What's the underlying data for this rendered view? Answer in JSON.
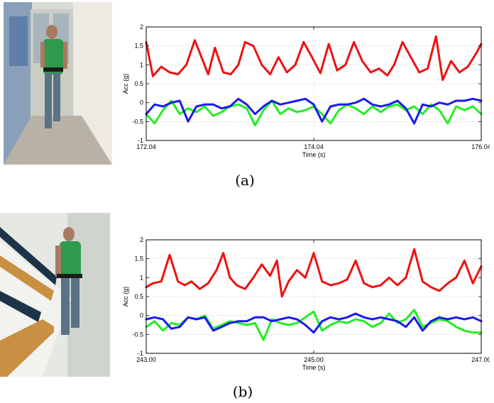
{
  "captions": {
    "a": "(a)",
    "b": "(b)"
  },
  "photos": {
    "a": "person-walking-corridor",
    "b": "person-climbing-stairs"
  },
  "chart_data": [
    {
      "type": "line",
      "xlabel": "Time (s)",
      "ylabel": "Acc (g)",
      "xlim": [
        172.04,
        176.04
      ],
      "ylim": [
        -1,
        2
      ],
      "xticks": [
        172.04,
        174.04,
        176.04
      ],
      "xtick_labels": [
        "172.04",
        "174.04",
        "176.04"
      ],
      "yticks": [
        -1,
        -0.5,
        0,
        0.5,
        1,
        1.5,
        2
      ],
      "ytick_labels": [
        "-1",
        "-0.5",
        "0",
        "0.5",
        "1",
        "1.5",
        "2"
      ],
      "grid": true,
      "series": [
        {
          "color": "#ee1111",
          "x": [
            172.04,
            172.12,
            172.22,
            172.32,
            172.42,
            172.52,
            172.62,
            172.7,
            172.78,
            172.86,
            172.96,
            173.05,
            173.14,
            173.22,
            173.32,
            173.42,
            173.52,
            173.62,
            173.72,
            173.82,
            173.92,
            174.02,
            174.12,
            174.22,
            174.32,
            174.42,
            174.52,
            174.62,
            174.72,
            174.82,
            174.92,
            175.0,
            175.1,
            175.2,
            175.3,
            175.4,
            175.5,
            175.58,
            175.68,
            175.78,
            175.88,
            175.98,
            176.04
          ],
          "values": [
            1.6,
            0.7,
            0.95,
            0.8,
            0.75,
            1.0,
            1.65,
            1.2,
            0.75,
            1.45,
            0.8,
            0.75,
            1.0,
            1.6,
            1.5,
            1.0,
            0.75,
            1.2,
            0.8,
            1.0,
            1.6,
            1.2,
            0.78,
            1.55,
            0.85,
            1.0,
            1.6,
            1.1,
            0.8,
            0.9,
            0.72,
            1.0,
            1.6,
            1.2,
            0.8,
            0.9,
            1.75,
            0.6,
            1.1,
            0.8,
            0.95,
            1.3,
            1.55
          ]
        },
        {
          "color": "#22ee22",
          "x": [
            172.04,
            172.14,
            172.24,
            172.34,
            172.44,
            172.54,
            172.64,
            172.74,
            172.84,
            172.94,
            173.04,
            173.14,
            173.24,
            173.34,
            173.44,
            173.54,
            173.64,
            173.74,
            173.84,
            173.94,
            174.04,
            174.14,
            174.24,
            174.34,
            174.44,
            174.54,
            174.64,
            174.74,
            174.84,
            174.94,
            175.04,
            175.14,
            175.24,
            175.34,
            175.44,
            175.54,
            175.64,
            175.74,
            175.84,
            175.94,
            176.04
          ],
          "values": [
            -0.3,
            -0.55,
            -0.2,
            0.05,
            -0.3,
            -0.15,
            -0.25,
            -0.1,
            -0.35,
            -0.25,
            -0.1,
            -0.05,
            -0.15,
            -0.6,
            -0.2,
            0.05,
            -0.3,
            -0.15,
            -0.25,
            -0.2,
            -0.1,
            -0.3,
            -0.55,
            -0.2,
            -0.05,
            -0.15,
            -0.3,
            -0.1,
            -0.25,
            -0.1,
            -0.05,
            -0.2,
            -0.1,
            -0.3,
            -0.05,
            -0.2,
            -0.55,
            -0.1,
            -0.2,
            -0.1,
            -0.3
          ]
        },
        {
          "color": "#1a1aee",
          "x": [
            172.04,
            172.14,
            172.24,
            172.34,
            172.44,
            172.54,
            172.64,
            172.74,
            172.84,
            172.94,
            173.04,
            173.14,
            173.24,
            173.34,
            173.44,
            173.54,
            173.64,
            173.74,
            173.84,
            173.94,
            174.04,
            174.14,
            174.24,
            174.34,
            174.44,
            174.54,
            174.64,
            174.74,
            174.84,
            174.94,
            175.04,
            175.14,
            175.24,
            175.34,
            175.44,
            175.54,
            175.64,
            175.74,
            175.84,
            175.94,
            176.04
          ],
          "values": [
            -0.3,
            -0.05,
            -0.1,
            0.0,
            0.05,
            -0.5,
            -0.1,
            -0.05,
            -0.05,
            -0.15,
            -0.1,
            0.1,
            -0.05,
            -0.3,
            -0.1,
            0.05,
            -0.05,
            0.0,
            0.05,
            0.1,
            -0.05,
            -0.5,
            -0.1,
            -0.05,
            -0.05,
            0.0,
            0.1,
            -0.05,
            -0.1,
            -0.05,
            0.05,
            -0.15,
            -0.55,
            -0.05,
            -0.1,
            0.0,
            -0.05,
            0.05,
            0.05,
            0.1,
            0.05
          ]
        }
      ]
    },
    {
      "type": "line",
      "xlabel": "Time (s)",
      "ylabel": "Acc (g)",
      "xlim": [
        243.0,
        247.0
      ],
      "ylim": [
        -1,
        2
      ],
      "xticks": [
        243.0,
        245.0,
        247.0
      ],
      "xtick_labels": [
        "243.00",
        "245.00",
        "247.00"
      ],
      "yticks": [
        -1,
        -0.5,
        0,
        0.5,
        1,
        1.5,
        2
      ],
      "ytick_labels": [
        "-1",
        "-0.5",
        "0",
        "0.5",
        "1",
        "1.5",
        "2"
      ],
      "grid": true,
      "series": [
        {
          "color": "#ee1111",
          "x": [
            243.0,
            243.08,
            243.18,
            243.28,
            243.38,
            243.46,
            243.54,
            243.64,
            243.74,
            243.84,
            243.92,
            244.0,
            244.08,
            244.18,
            244.28,
            244.38,
            244.48,
            244.56,
            244.62,
            244.7,
            244.8,
            244.9,
            245.0,
            245.1,
            245.2,
            245.3,
            245.4,
            245.5,
            245.6,
            245.7,
            245.8,
            245.9,
            246.0,
            246.1,
            246.2,
            246.3,
            246.4,
            246.5,
            246.6,
            246.7,
            246.8,
            246.9,
            247.0
          ],
          "values": [
            0.75,
            0.85,
            0.9,
            1.6,
            0.9,
            0.8,
            0.9,
            0.7,
            0.85,
            1.2,
            1.65,
            1.0,
            0.8,
            0.7,
            1.0,
            1.35,
            1.05,
            1.45,
            0.5,
            0.9,
            1.2,
            1.0,
            1.65,
            0.9,
            0.8,
            0.85,
            0.95,
            1.45,
            0.85,
            0.75,
            0.8,
            1.0,
            0.8,
            1.0,
            1.75,
            0.9,
            0.75,
            0.65,
            0.85,
            1.0,
            1.45,
            0.85,
            1.3
          ]
        },
        {
          "color": "#22ee22",
          "x": [
            243.0,
            243.1,
            243.2,
            243.3,
            243.4,
            243.5,
            243.6,
            243.7,
            243.8,
            243.9,
            244.0,
            244.1,
            244.2,
            244.3,
            244.4,
            244.5,
            244.6,
            244.7,
            244.8,
            244.9,
            245.0,
            245.1,
            245.2,
            245.3,
            245.4,
            245.5,
            245.6,
            245.7,
            245.8,
            245.9,
            246.0,
            246.1,
            246.2,
            246.3,
            246.4,
            246.5,
            246.6,
            246.7,
            246.8,
            246.9,
            247.0
          ],
          "values": [
            -0.3,
            -0.15,
            -0.4,
            -0.2,
            -0.25,
            -0.05,
            -0.1,
            0.0,
            -0.35,
            -0.25,
            -0.15,
            -0.2,
            -0.25,
            -0.2,
            -0.65,
            -0.1,
            -0.2,
            -0.25,
            -0.2,
            -0.05,
            0.1,
            -0.4,
            -0.25,
            -0.15,
            -0.2,
            -0.1,
            -0.15,
            -0.3,
            -0.2,
            0.05,
            -0.2,
            -0.1,
            0.15,
            -0.3,
            -0.2,
            -0.1,
            -0.15,
            -0.3,
            -0.4,
            -0.45,
            -0.45
          ]
        },
        {
          "color": "#1a1aee",
          "x": [
            243.0,
            243.1,
            243.2,
            243.3,
            243.4,
            243.5,
            243.6,
            243.7,
            243.8,
            243.9,
            244.0,
            244.1,
            244.2,
            244.3,
            244.4,
            244.5,
            244.6,
            244.7,
            244.8,
            244.9,
            245.0,
            245.1,
            245.2,
            245.3,
            245.4,
            245.5,
            245.6,
            245.7,
            245.8,
            245.9,
            246.0,
            246.1,
            246.2,
            246.3,
            246.4,
            246.5,
            246.6,
            246.7,
            246.8,
            246.9,
            247.0
          ],
          "values": [
            -0.1,
            -0.05,
            -0.1,
            -0.35,
            -0.3,
            -0.05,
            -0.1,
            -0.05,
            -0.4,
            -0.3,
            -0.2,
            -0.15,
            -0.15,
            -0.05,
            -0.05,
            -0.15,
            -0.1,
            -0.05,
            -0.1,
            -0.25,
            -0.45,
            -0.15,
            -0.05,
            -0.1,
            -0.05,
            0.05,
            -0.05,
            -0.1,
            -0.05,
            -0.1,
            -0.15,
            -0.3,
            -0.05,
            -0.4,
            -0.15,
            -0.05,
            -0.1,
            -0.05,
            -0.1,
            -0.05,
            -0.15
          ]
        }
      ]
    }
  ]
}
